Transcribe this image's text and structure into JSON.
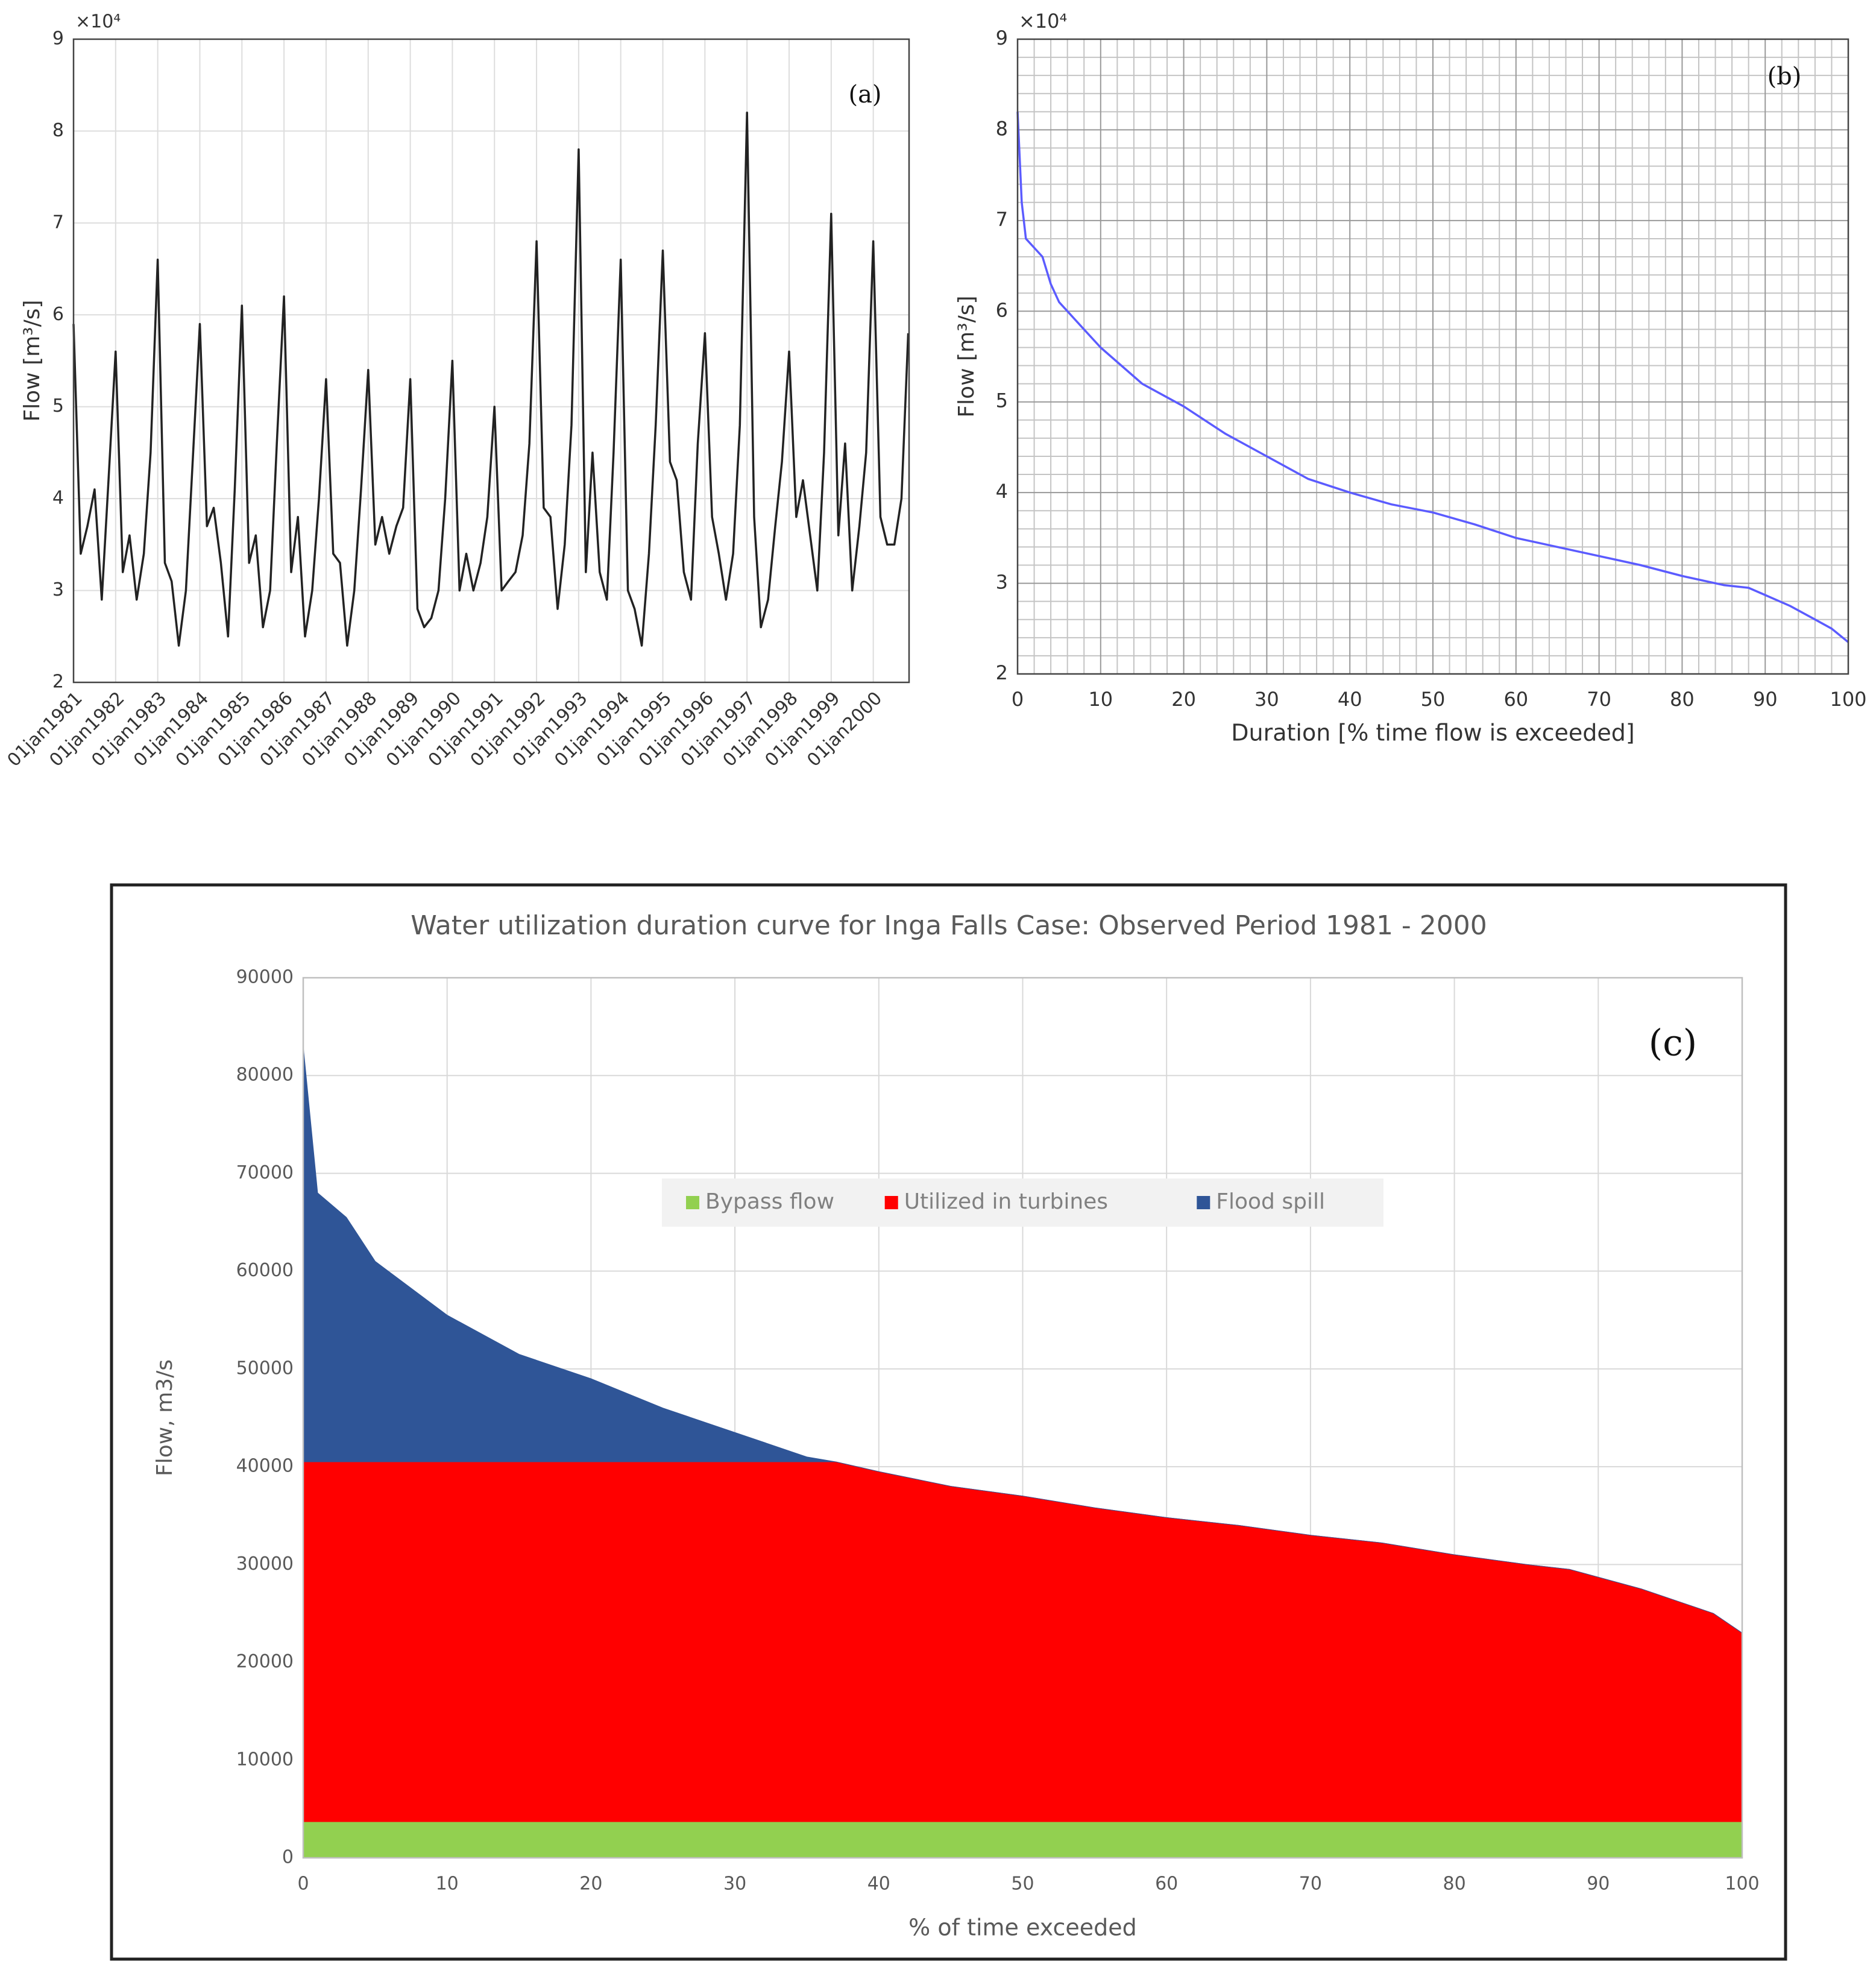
{
  "chart_data": [
    {
      "type": "line",
      "annotation": "(a)",
      "y_multiplier": "×10⁴",
      "ylabel": "Flow [m³/s]",
      "x": [
        1981,
        1981.17,
        1981.33,
        1981.5,
        1981.67,
        1981.83,
        1982,
        1982.17,
        1982.33,
        1982.5,
        1982.67,
        1982.83,
        1983,
        1983.17,
        1983.33,
        1983.5,
        1983.67,
        1983.83,
        1984,
        1984.17,
        1984.33,
        1984.5,
        1984.67,
        1984.83,
        1985,
        1985.17,
        1985.33,
        1985.5,
        1985.67,
        1985.83,
        1986,
        1986.17,
        1986.33,
        1986.5,
        1986.67,
        1986.83,
        1987,
        1987.17,
        1987.33,
        1987.5,
        1987.67,
        1987.83,
        1988,
        1988.17,
        1988.33,
        1988.5,
        1988.67,
        1988.83,
        1989,
        1989.17,
        1989.33,
        1989.5,
        1989.67,
        1989.83,
        1990,
        1990.17,
        1990.33,
        1990.5,
        1990.67,
        1990.83,
        1991,
        1991.17,
        1991.33,
        1991.5,
        1991.67,
        1991.83,
        1992,
        1992.17,
        1992.33,
        1992.5,
        1992.67,
        1992.83,
        1993,
        1993.17,
        1993.33,
        1993.5,
        1993.67,
        1993.83,
        1994,
        1994.17,
        1994.33,
        1994.5,
        1994.67,
        1994.83,
        1995,
        1995.17,
        1995.33,
        1995.5,
        1995.67,
        1995.83,
        1996,
        1996.17,
        1996.33,
        1996.5,
        1996.67,
        1996.83,
        1997,
        1997.17,
        1997.33,
        1997.5,
        1997.67,
        1997.83,
        1998,
        1998.17,
        1998.33,
        1998.5,
        1998.67,
        1998.83,
        1999,
        1999.17,
        1999.33,
        1999.5,
        1999.67,
        1999.83,
        2000,
        2000.17,
        2000.33,
        2000.5,
        2000.67,
        2000.83
      ],
      "series": [
        {
          "color": "#222222",
          "values": [
            5.9,
            3.4,
            3.7,
            4.1,
            2.9,
            4.2,
            5.6,
            3.2,
            3.6,
            2.9,
            3.4,
            4.5,
            6.6,
            3.3,
            3.1,
            2.4,
            3.0,
            4.4,
            5.9,
            3.7,
            3.9,
            3.3,
            2.5,
            4.1,
            6.1,
            3.3,
            3.6,
            2.6,
            3.0,
            4.6,
            6.2,
            3.2,
            3.8,
            2.5,
            3.0,
            4.0,
            5.3,
            3.4,
            3.3,
            2.4,
            3.0,
            4.1,
            5.4,
            3.5,
            3.8,
            3.4,
            3.7,
            3.9,
            5.3,
            2.8,
            2.6,
            2.7,
            3.0,
            4.0,
            5.5,
            3.0,
            3.4,
            3.0,
            3.3,
            3.8,
            5.0,
            3.0,
            3.1,
            3.2,
            3.6,
            4.6,
            6.8,
            3.9,
            3.8,
            2.8,
            3.5,
            4.8,
            7.8,
            3.2,
            4.5,
            3.2,
            2.9,
            4.5,
            6.6,
            3.0,
            2.8,
            2.4,
            3.4,
            4.8,
            6.7,
            4.4,
            4.2,
            3.2,
            2.9,
            4.6,
            5.8,
            3.8,
            3.4,
            2.9,
            3.4,
            4.8,
            8.2,
            3.8,
            2.6,
            2.9,
            3.7,
            4.4,
            5.6,
            3.8,
            4.2,
            3.6,
            3.0,
            4.5,
            7.1,
            3.6,
            4.6,
            3.0,
            3.7,
            4.5,
            6.8,
            3.8,
            3.5,
            3.5,
            4.0,
            5.8
          ]
        }
      ],
      "xlim": [
        1981,
        2000.85
      ],
      "xticks": [
        {
          "value": 1981,
          "label": "01jan1981"
        },
        {
          "value": 1982,
          "label": "01jan1982"
        },
        {
          "value": 1983,
          "label": "01jan1983"
        },
        {
          "value": 1984,
          "label": "01jan1984"
        },
        {
          "value": 1985,
          "label": "01jan1985"
        },
        {
          "value": 1986,
          "label": "01jan1986"
        },
        {
          "value": 1987,
          "label": "01jan1987"
        },
        {
          "value": 1988,
          "label": "01jan1988"
        },
        {
          "value": 1989,
          "label": "01jan1989"
        },
        {
          "value": 1990,
          "label": "01jan1990"
        },
        {
          "value": 1991,
          "label": "01jan1991"
        },
        {
          "value": 1992,
          "label": "01jan1992"
        },
        {
          "value": 1993,
          "label": "01jan1993"
        },
        {
          "value": 1994,
          "label": "01jan1994"
        },
        {
          "value": 1995,
          "label": "01jan1995"
        },
        {
          "value": 1996,
          "label": "01jan1996"
        },
        {
          "value": 1997,
          "label": "01jan1997"
        },
        {
          "value": 1998,
          "label": "01jan1998"
        },
        {
          "value": 1999,
          "label": "01jan1999"
        },
        {
          "value": 2000,
          "label": "01jan2000"
        }
      ],
      "ylim": [
        2,
        9
      ],
      "yticks": [
        2,
        3,
        4,
        5,
        6,
        7,
        8,
        9
      ],
      "grid": true
    },
    {
      "type": "line",
      "annotation": "(b)",
      "y_multiplier": "×10⁴",
      "xlabel": "Duration [% time flow is exceeded]",
      "ylabel": "Flow [m³/s]",
      "x": [
        0,
        0.5,
        1,
        2,
        3,
        4,
        5,
        8,
        10,
        15,
        20,
        25,
        30,
        35,
        40,
        45,
        50,
        55,
        60,
        65,
        70,
        75,
        80,
        85,
        88,
        90,
        93,
        96,
        98,
        100
      ],
      "series": [
        {
          "color": "#5b5bff",
          "values": [
            8.2,
            7.2,
            6.8,
            6.7,
            6.6,
            6.3,
            6.1,
            5.8,
            5.6,
            5.2,
            4.95,
            4.65,
            4.4,
            4.15,
            4.0,
            3.87,
            3.78,
            3.65,
            3.5,
            3.4,
            3.3,
            3.2,
            3.08,
            2.98,
            2.95,
            2.87,
            2.75,
            2.6,
            2.5,
            2.35
          ]
        }
      ],
      "xlim": [
        0,
        100
      ],
      "xticks": [
        0,
        10,
        20,
        30,
        40,
        50,
        60,
        70,
        80,
        90,
        100
      ],
      "ylim": [
        2,
        9
      ],
      "yticks": [
        2,
        3,
        4,
        5,
        6,
        7,
        8,
        9
      ],
      "grid": true,
      "minor_grid": true
    },
    {
      "type": "stacked_area",
      "title": "Water utilization  duration curve for Inga Falls   Case:  Observed Period 1981 - 2000",
      "annotation": "(c)",
      "xlabel": "% of time exceeded",
      "ylabel": "Flow, m3/s",
      "x": [
        0,
        1,
        3,
        5,
        10,
        15,
        20,
        25,
        30,
        35,
        37,
        40,
        45,
        50,
        55,
        60,
        65,
        70,
        75,
        80,
        85,
        88,
        90,
        93,
        96,
        98,
        100
      ],
      "series": [
        {
          "name": "Bypass flow",
          "color": "#92d050",
          "values": [
            3700,
            3700,
            3700,
            3700,
            3700,
            3700,
            3700,
            3700,
            3700,
            3700,
            3700,
            3700,
            3700,
            3700,
            3700,
            3700,
            3700,
            3700,
            3700,
            3700,
            3700,
            3700,
            3700,
            3700,
            3700,
            3700,
            3700
          ]
        },
        {
          "name": "Utilized in turbines",
          "color": "#ff0000",
          "values": [
            36800,
            36800,
            36800,
            36800,
            36800,
            36800,
            36800,
            36800,
            36800,
            36800,
            36800,
            35800,
            34300,
            33300,
            32100,
            31100,
            30300,
            29300,
            28500,
            27300,
            26300,
            25800,
            25000,
            23800,
            22300,
            21300,
            19300
          ]
        },
        {
          "name": "Flood spill",
          "color": "#2f5597",
          "values": [
            42500,
            27500,
            25000,
            20500,
            15000,
            11000,
            8500,
            5500,
            3000,
            500,
            0,
            0,
            0,
            0,
            0,
            0,
            0,
            0,
            0,
            0,
            0,
            0,
            0,
            0,
            0,
            0,
            0
          ]
        }
      ],
      "xlim": [
        0,
        100
      ],
      "xticks": [
        0,
        10,
        20,
        30,
        40,
        50,
        60,
        70,
        80,
        90,
        100
      ],
      "ylim": [
        0,
        90000
      ],
      "yticks": [
        0,
        10000,
        20000,
        30000,
        40000,
        50000,
        60000,
        70000,
        80000,
        90000
      ],
      "grid": true,
      "legend": "upper center"
    }
  ]
}
